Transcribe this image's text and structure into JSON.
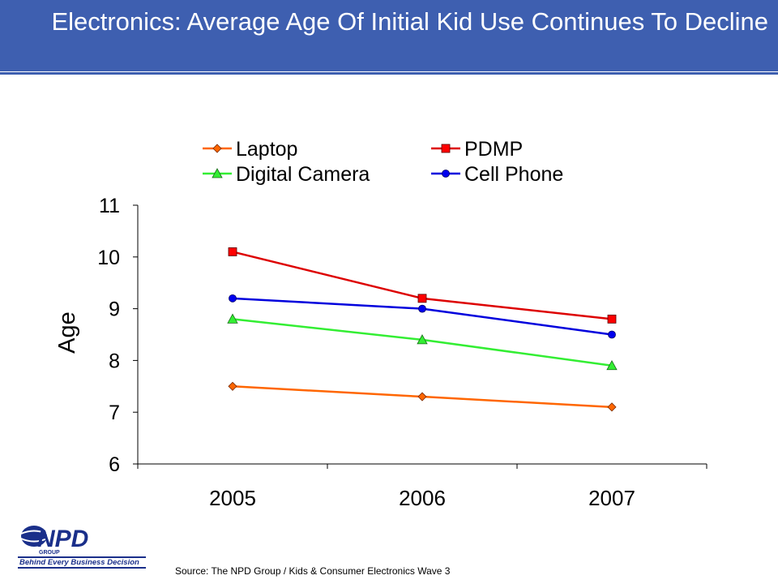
{
  "header": {
    "title": "Electronics: Average Age Of Initial Kid Use Continues To Decline"
  },
  "chart_data": {
    "type": "line",
    "title": "",
    "xlabel": "",
    "ylabel": "Age",
    "categories": [
      "2005",
      "2006",
      "2007"
    ],
    "ylim": [
      6,
      11
    ],
    "yticks": [
      6,
      7,
      8,
      9,
      10,
      11
    ],
    "grid": false,
    "legend_position": "top",
    "series": [
      {
        "name": "Laptop",
        "values": [
          7.5,
          7.3,
          7.1
        ],
        "color": "#ff6600",
        "marker": "diamond",
        "marker_fill": "#ff6600"
      },
      {
        "name": "PDMP",
        "values": [
          10.1,
          9.2,
          8.8
        ],
        "color": "#dd0000",
        "marker": "square",
        "marker_fill": "#ff0000"
      },
      {
        "name": "Digital Camera",
        "values": [
          8.8,
          8.4,
          7.9
        ],
        "color": "#33ee33",
        "marker": "triangle",
        "marker_fill": "#33ee33"
      },
      {
        "name": "Cell Phone",
        "values": [
          9.2,
          9.0,
          8.5
        ],
        "color": "#0000dd",
        "marker": "circle",
        "marker_fill": "#0000ee"
      }
    ]
  },
  "logo": {
    "brand": "NPD",
    "sub": "GROUP",
    "tagline": "Behind Every Business Decision",
    "brand_color": "#1a2f8a"
  },
  "footer": {
    "source": "Source:  The NPD Group / Kids & Consumer Electronics Wave 3"
  }
}
